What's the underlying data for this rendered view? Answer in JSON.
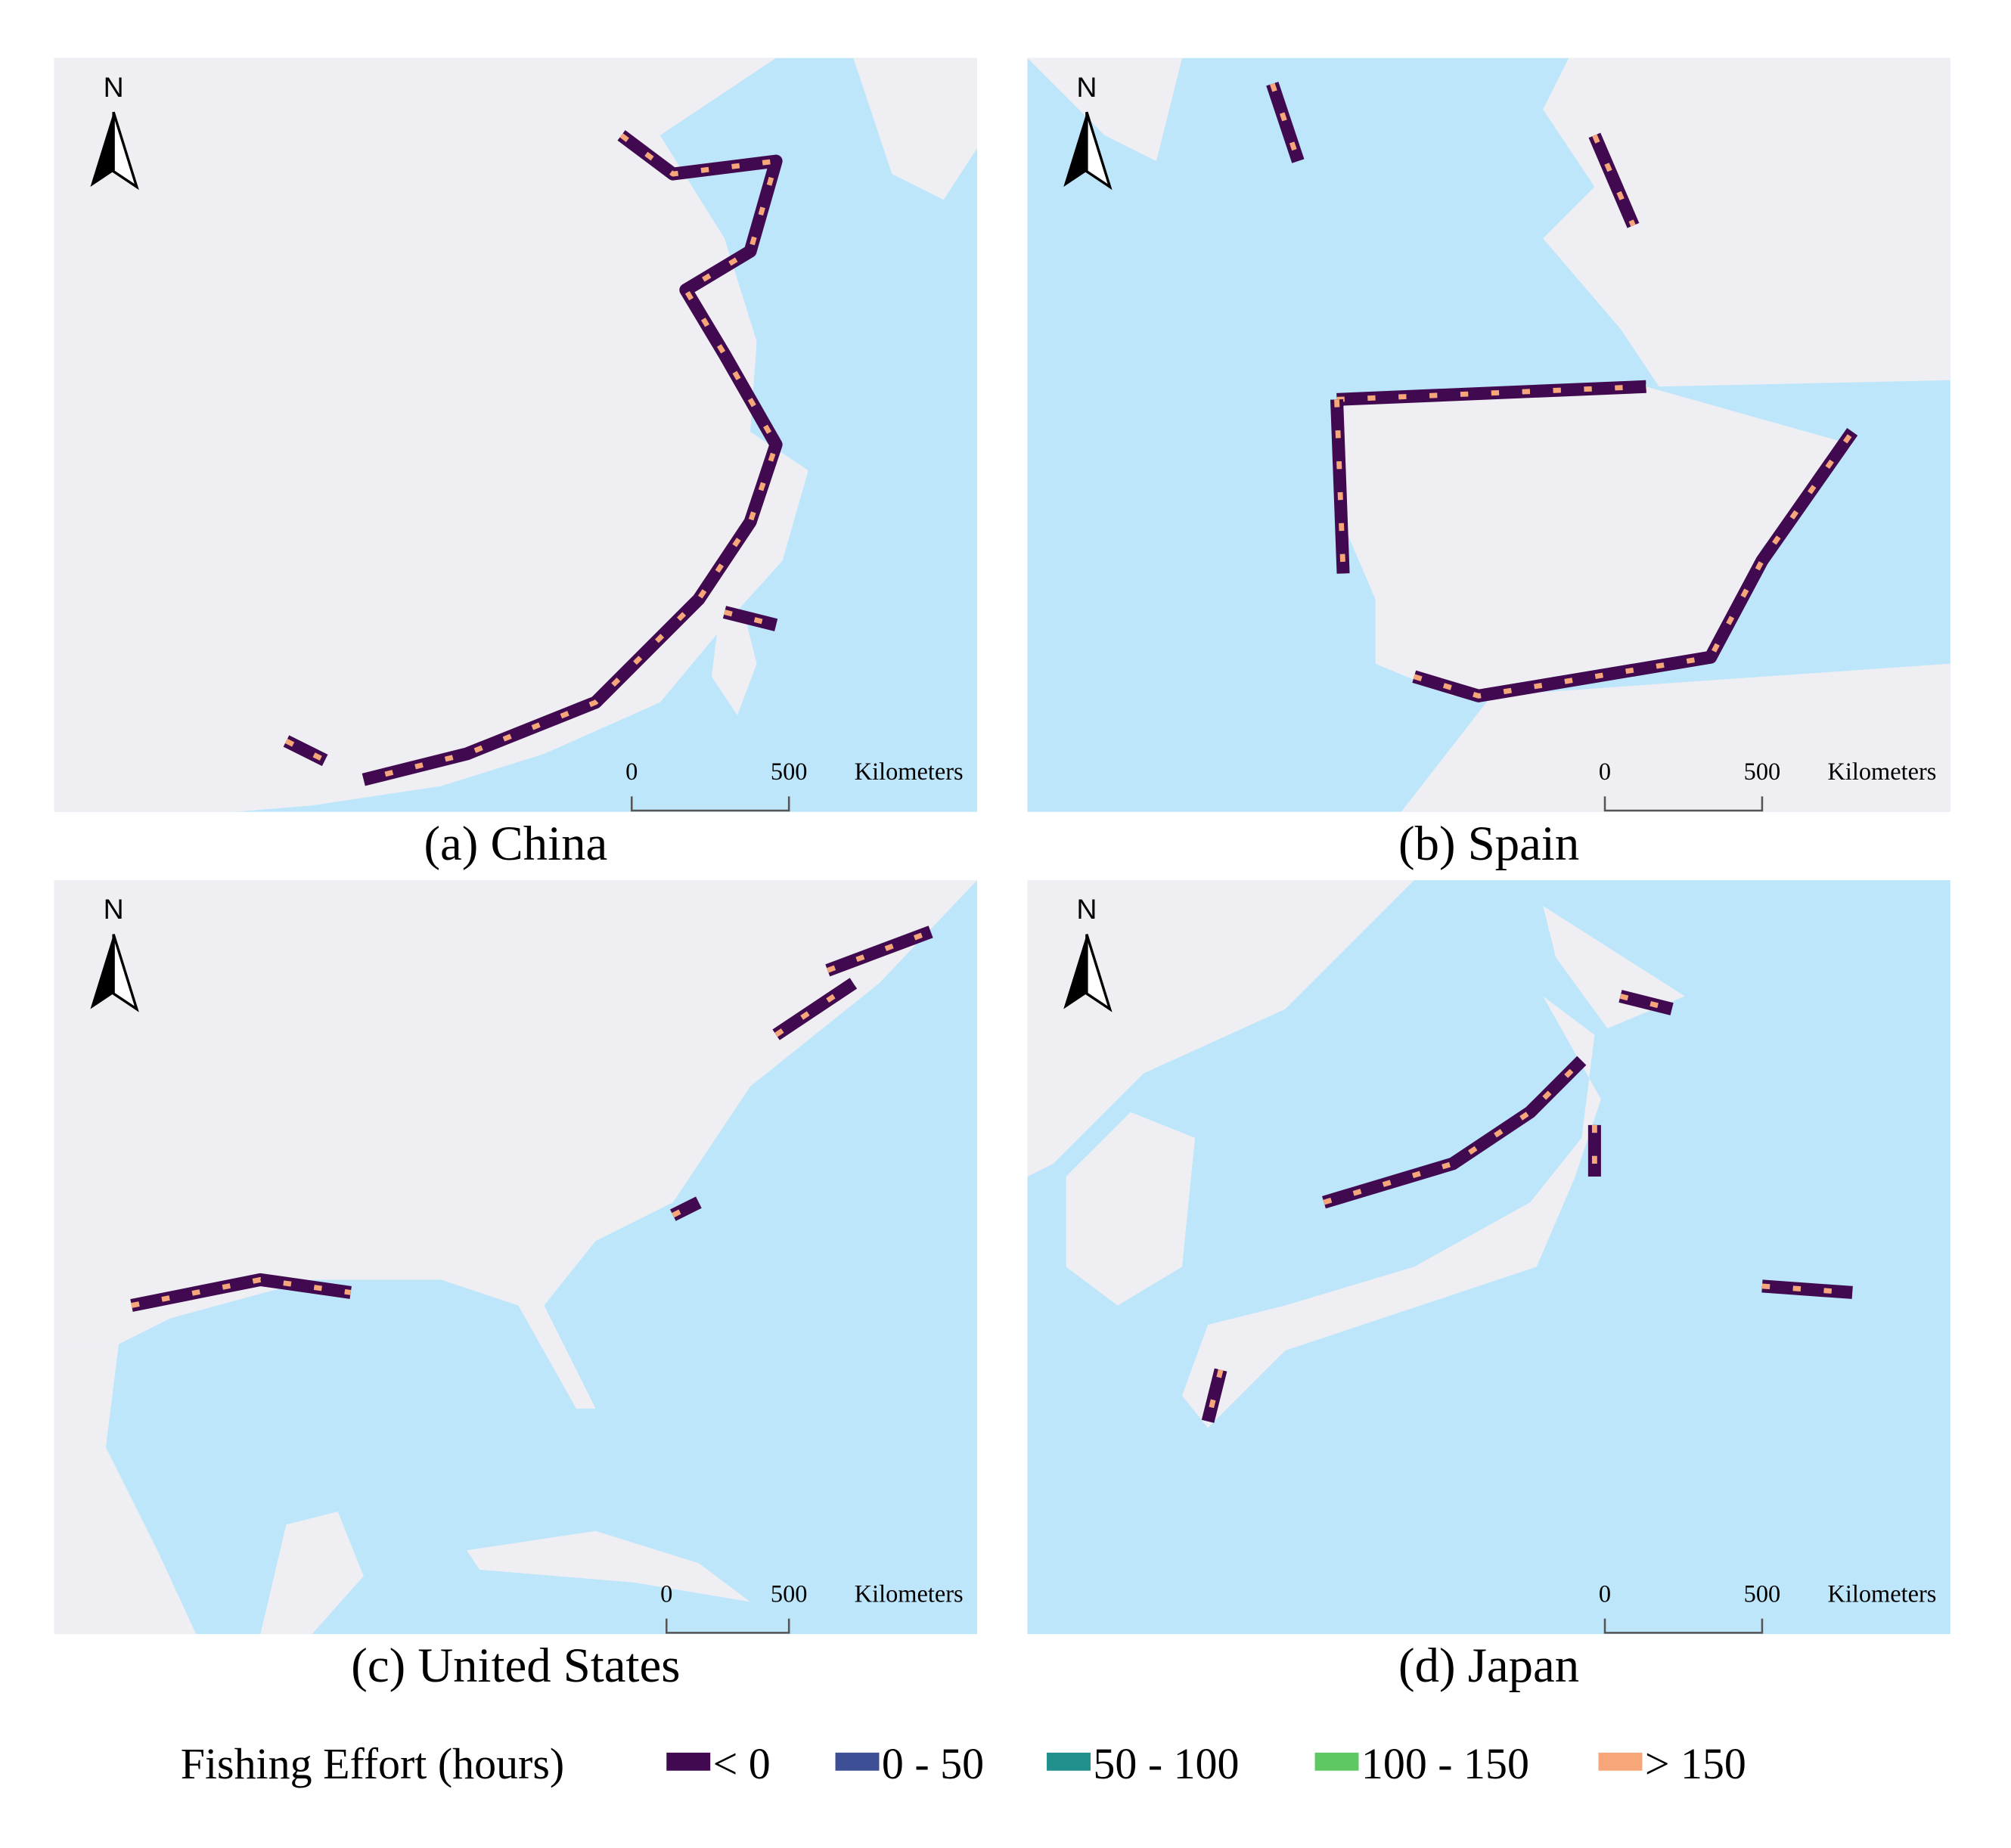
{
  "panels": [
    {
      "caption": "(a) China",
      "north": "N",
      "scale": {
        "ticks": [
          "0",
          "500"
        ],
        "unit": "Kilometers"
      }
    },
    {
      "caption": "(b) Spain",
      "north": "N",
      "scale": {
        "ticks": [
          "0",
          "500"
        ],
        "unit": "Kilometers"
      }
    },
    {
      "caption": "(c) United States",
      "north": "N",
      "scale": {
        "ticks": [
          "0",
          "500"
        ],
        "unit": "Kilometers"
      }
    },
    {
      "caption": "(d) Japan",
      "north": "N",
      "scale": {
        "ticks": [
          "0",
          "500"
        ],
        "unit": "Kilometers"
      }
    }
  ],
  "legend": {
    "title": "Fishing Effort (hours)",
    "items": [
      {
        "label": "< 0",
        "color": "#410a50"
      },
      {
        "label": "0 - 50",
        "color": "#3d5096"
      },
      {
        "label": "50 - 100",
        "color": "#21908c"
      },
      {
        "label": "100 - 150",
        "color": "#5ec962"
      },
      {
        "label": "> 150",
        "color": "#f7a67a"
      }
    ]
  }
}
